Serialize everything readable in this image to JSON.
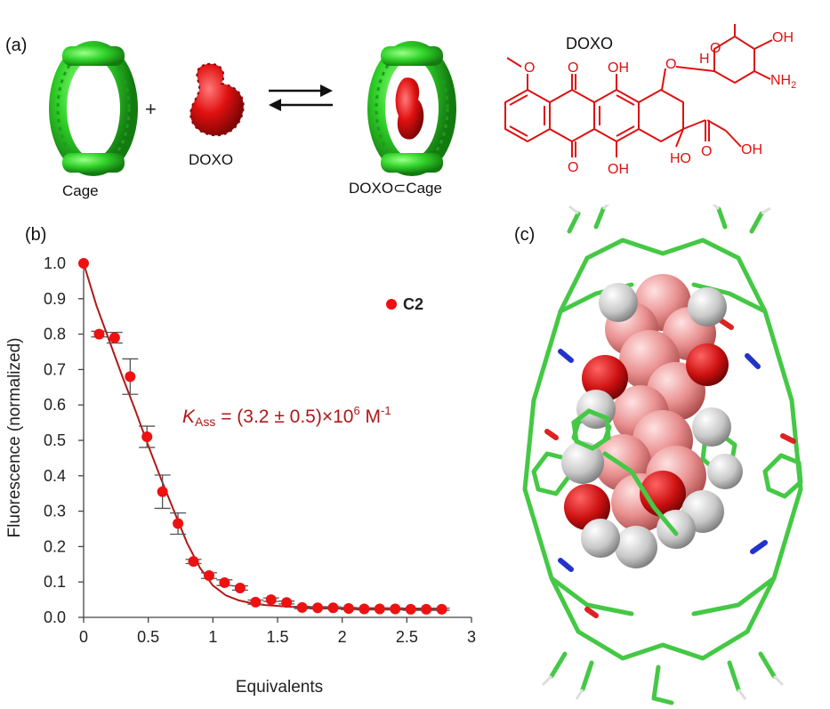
{
  "panel_a": {
    "label": "(a)",
    "cage_label": "Cage",
    "plus": "+",
    "guest_label": "DOXO",
    "complex_label": "DOXO⊂Cage",
    "structure_title": "DOXO",
    "atoms": {
      "O": "O",
      "OH": "OH",
      "HO": "HO",
      "H": "H",
      "NH2_N": "NH",
      "NH2_sub": "2"
    },
    "colors": {
      "cage": "#22cc22",
      "guest": "#dd1111",
      "structure": "#dd1111"
    }
  },
  "panel_b": {
    "label": "(b)",
    "annotation_k": "K",
    "annotation_sub": "Ass",
    "annotation_rest": " = (3.2 ± 0.5)×10",
    "annotation_exp": "6",
    "annotation_unit": " M",
    "annotation_unit_exp": "-1",
    "legend_label": "C2"
  },
  "panel_c": {
    "label": "(c)"
  },
  "chart_data": {
    "type": "scatter",
    "title": "",
    "xlabel": "Equivalents",
    "ylabel": "Fluorescence (normalized)",
    "xlim": [
      0,
      3
    ],
    "ylim": [
      0,
      1.0
    ],
    "xticks": [
      "0",
      "0.5",
      "1",
      "1.5",
      "2",
      "2.5",
      "3"
    ],
    "yticks": [
      "0.0",
      "0.1",
      "0.2",
      "0.3",
      "0.4",
      "0.5",
      "0.6",
      "0.7",
      "0.8",
      "0.9",
      "1.0"
    ],
    "grid": false,
    "legend_position": "top-right",
    "series": [
      {
        "name": "C2",
        "color": "#ee1111",
        "x": [
          0,
          0.12,
          0.24,
          0.36,
          0.49,
          0.61,
          0.73,
          0.85,
          0.97,
          1.09,
          1.21,
          1.33,
          1.45,
          1.57,
          1.69,
          1.81,
          1.93,
          2.05,
          2.17,
          2.29,
          2.41,
          2.53,
          2.65,
          2.77
        ],
        "y": [
          1.0,
          0.8,
          0.79,
          0.68,
          0.51,
          0.355,
          0.265,
          0.158,
          0.118,
          0.098,
          0.083,
          0.043,
          0.05,
          0.042,
          0.028,
          0.027,
          0.027,
          0.025,
          0.024,
          0.024,
          0.024,
          0.023,
          0.023,
          0.023
        ],
        "err": [
          0,
          0.008,
          0.015,
          0.05,
          0.03,
          0.047,
          0.03,
          0.006,
          0.008,
          0.008,
          0.006,
          0.006,
          0.005,
          0.004,
          0.003,
          0.003,
          0.003,
          0.003,
          0.003,
          0.003,
          0.003,
          0.003,
          0.003,
          0.003
        ]
      },
      {
        "color": "#b01818",
        "x": [
          0,
          0.1,
          0.2,
          0.3,
          0.4,
          0.5,
          0.6,
          0.7,
          0.8,
          0.9,
          1.0,
          1.1,
          1.2,
          1.3,
          1.4,
          1.6,
          1.8,
          2.0,
          2.4,
          2.77
        ],
        "y": [
          1.0,
          0.88,
          0.78,
          0.68,
          0.585,
          0.485,
          0.39,
          0.3,
          0.21,
          0.14,
          0.09,
          0.062,
          0.048,
          0.04,
          0.035,
          0.03,
          0.027,
          0.025,
          0.023,
          0.022
        ]
      }
    ]
  }
}
